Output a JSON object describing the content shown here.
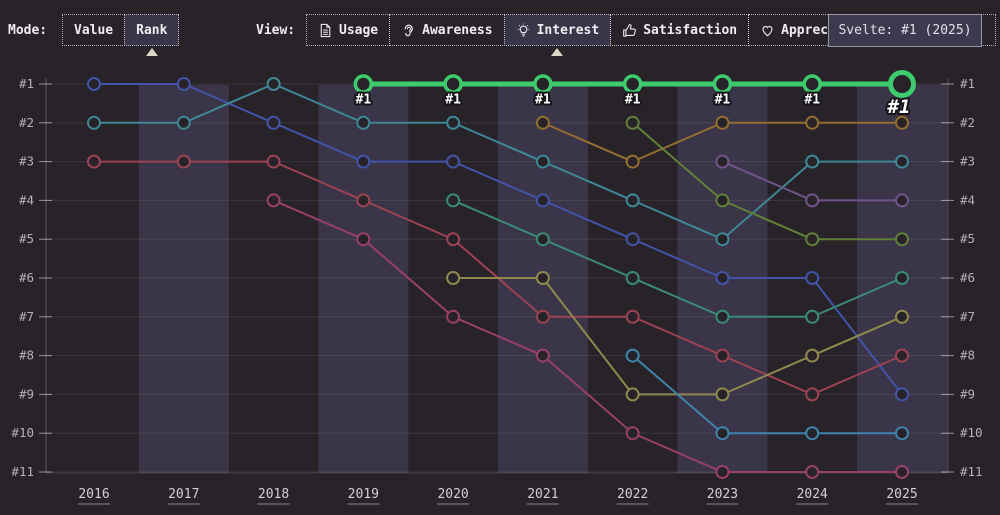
{
  "header": {
    "mode_label": "Mode:",
    "mode_options": [
      {
        "label": "Value",
        "selected": false
      },
      {
        "label": "Rank",
        "selected": true
      }
    ],
    "view_label": "View:",
    "view_tabs": [
      {
        "label": "Usage",
        "icon": "document-icon",
        "selected": false
      },
      {
        "label": "Awareness",
        "icon": "ear-icon",
        "selected": false
      },
      {
        "label": "Interest",
        "icon": "lightbulb-icon",
        "selected": true
      },
      {
        "label": "Satisfaction",
        "icon": "thumbs-up-icon",
        "selected": false
      },
      {
        "label": "Appreciation",
        "icon": "heart-icon",
        "selected": false
      }
    ]
  },
  "tooltip": {
    "text": "Svelte: #1 (2025)"
  },
  "chart_data": {
    "type": "line",
    "subtype": "rank-bump",
    "x": [
      2016,
      2017,
      2018,
      2019,
      2020,
      2021,
      2022,
      2023,
      2024,
      2025
    ],
    "rank_ticks": [
      "#1",
      "#2",
      "#3",
      "#4",
      "#5",
      "#6",
      "#7",
      "#8",
      "#9",
      "#10",
      "#11"
    ],
    "rank_range": [
      1,
      11
    ],
    "grid": true,
    "striped_years": [
      2017,
      2019,
      2021,
      2023,
      2025
    ],
    "stripe_color": "#3a3548",
    "background_color": "#282329",
    "highlight_point_label": "#1",
    "series": [
      {
        "id": "blue",
        "color": "#4253a8",
        "highlight": false,
        "ranks": [
          1,
          1,
          2,
          3,
          3,
          4,
          5,
          6,
          6,
          9
        ]
      },
      {
        "id": "teal",
        "color": "#3e8795",
        "highlight": false,
        "ranks": [
          2,
          2,
          1,
          2,
          2,
          3,
          4,
          5,
          3,
          3
        ]
      },
      {
        "id": "red",
        "color": "#9b4253",
        "highlight": false,
        "ranks": [
          3,
          3,
          3,
          4,
          5,
          7,
          7,
          8,
          9,
          8
        ]
      },
      {
        "id": "pink",
        "color": "#984069",
        "highlight": false,
        "ranks": [
          null,
          null,
          4,
          5,
          7,
          8,
          10,
          11,
          11,
          11
        ]
      },
      {
        "id": "sea-green",
        "color": "#3b8a77",
        "highlight": false,
        "ranks": [
          null,
          null,
          null,
          null,
          4,
          5,
          6,
          7,
          7,
          6
        ]
      },
      {
        "id": "olive",
        "color": "#8f894d",
        "highlight": false,
        "ranks": [
          null,
          null,
          null,
          null,
          6,
          6,
          9,
          9,
          8,
          7
        ]
      },
      {
        "id": "gold",
        "color": "#926d30",
        "highlight": false,
        "ranks": [
          null,
          null,
          null,
          null,
          null,
          2,
          3,
          2,
          2,
          2
        ]
      },
      {
        "id": "dark-green",
        "color": "#627f3a",
        "highlight": false,
        "ranks": [
          null,
          null,
          null,
          null,
          null,
          null,
          2,
          4,
          5,
          5
        ]
      },
      {
        "id": "light-blue",
        "color": "#3e83ab",
        "highlight": false,
        "ranks": [
          null,
          null,
          null,
          null,
          null,
          null,
          8,
          10,
          10,
          10
        ]
      },
      {
        "id": "purple",
        "color": "#705488",
        "highlight": false,
        "ranks": [
          null,
          null,
          null,
          null,
          null,
          null,
          null,
          3,
          4,
          4
        ]
      },
      {
        "id": "svelte",
        "color": "#3ecb6e",
        "highlight": true,
        "ranks": [
          null,
          null,
          null,
          1,
          1,
          1,
          1,
          1,
          1,
          1
        ]
      }
    ]
  }
}
